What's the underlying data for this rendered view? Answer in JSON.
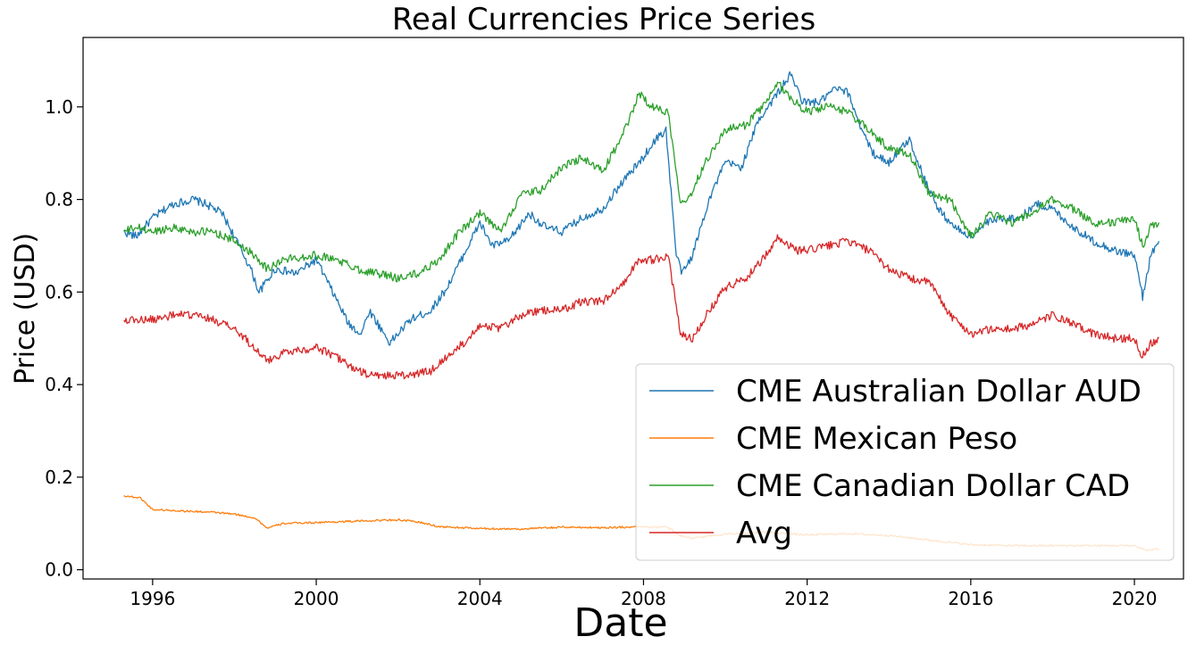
{
  "chart_data": {
    "type": "line",
    "title": "Real Currencies Price Series",
    "xlabel": "Date",
    "ylabel": "Price (USD)",
    "xlim": [
      1994.3,
      2021.2
    ],
    "ylim": [
      -0.02,
      1.15
    ],
    "x_ticks": [
      1996,
      2000,
      2004,
      2008,
      2012,
      2016,
      2020
    ],
    "y_ticks": [
      0.0,
      0.2,
      0.4,
      0.6,
      0.8,
      1.0
    ],
    "y_tick_labels": [
      "0.0",
      "0.2",
      "0.4",
      "0.6",
      "0.8",
      "1.0"
    ],
    "grid": false,
    "legend_position": "lower-right",
    "series": [
      {
        "name": "CME Australian Dollar AUD",
        "color": "#1f77b4",
        "x": [
          1995.3,
          1995.6,
          1996.0,
          1996.5,
          1997.0,
          1997.3,
          1997.7,
          1998.0,
          1998.4,
          1998.6,
          1999.0,
          1999.5,
          2000.0,
          2000.4,
          2000.8,
          2001.1,
          2001.3,
          2001.8,
          2002.3,
          2002.8,
          2003.2,
          2003.6,
          2004.0,
          2004.3,
          2004.7,
          2005.2,
          2005.6,
          2006.0,
          2006.5,
          2007.0,
          2007.5,
          2007.9,
          2008.3,
          2008.55,
          2008.8,
          2008.95,
          2009.2,
          2009.6,
          2010.0,
          2010.4,
          2010.8,
          2011.2,
          2011.6,
          2011.9,
          2012.3,
          2012.7,
          2013.0,
          2013.3,
          2013.6,
          2014.0,
          2014.5,
          2014.8,
          2015.2,
          2015.6,
          2016.0,
          2016.4,
          2016.8,
          2017.2,
          2017.6,
          2018.0,
          2018.5,
          2019.0,
          2019.5,
          2020.0,
          2020.2,
          2020.4,
          2020.6
        ],
        "y": [
          0.73,
          0.72,
          0.76,
          0.79,
          0.8,
          0.79,
          0.77,
          0.72,
          0.65,
          0.6,
          0.65,
          0.64,
          0.67,
          0.6,
          0.53,
          0.51,
          0.56,
          0.49,
          0.54,
          0.56,
          0.61,
          0.68,
          0.75,
          0.7,
          0.71,
          0.77,
          0.74,
          0.73,
          0.76,
          0.78,
          0.84,
          0.88,
          0.93,
          0.95,
          0.68,
          0.64,
          0.68,
          0.8,
          0.88,
          0.87,
          0.97,
          1.02,
          1.07,
          1.01,
          1.01,
          1.04,
          1.03,
          0.96,
          0.9,
          0.88,
          0.93,
          0.86,
          0.78,
          0.74,
          0.72,
          0.75,
          0.76,
          0.76,
          0.79,
          0.78,
          0.74,
          0.71,
          0.69,
          0.68,
          0.59,
          0.68,
          0.71
        ]
      },
      {
        "name": "CME Mexican Peso",
        "color": "#ff7f0e",
        "x": [
          1995.3,
          1995.7,
          1996.0,
          1996.5,
          1997.0,
          1997.5,
          1998.0,
          1998.5,
          1998.8,
          1999.2,
          2000.0,
          2001.0,
          2002.0,
          2002.5,
          2003.0,
          2004.0,
          2005.0,
          2006.0,
          2007.0,
          2008.0,
          2008.6,
          2008.9,
          2009.2,
          2010.0,
          2011.0,
          2012.0,
          2013.0,
          2014.0,
          2015.0,
          2016.0,
          2017.0,
          2018.0,
          2019.0,
          2020.0,
          2020.3,
          2020.6
        ],
        "y": [
          0.16,
          0.155,
          0.13,
          0.128,
          0.126,
          0.124,
          0.12,
          0.112,
          0.09,
          0.1,
          0.102,
          0.105,
          0.108,
          0.103,
          0.093,
          0.089,
          0.088,
          0.092,
          0.091,
          0.093,
          0.092,
          0.074,
          0.068,
          0.077,
          0.081,
          0.075,
          0.078,
          0.074,
          0.064,
          0.054,
          0.052,
          0.052,
          0.052,
          0.052,
          0.042,
          0.045
        ]
      },
      {
        "name": "CME Canadian Dollar CAD",
        "color": "#2ca02c",
        "x": [
          1995.3,
          1995.6,
          1996.0,
          1996.5,
          1997.0,
          1997.5,
          1998.0,
          1998.5,
          1998.8,
          1999.2,
          2000.0,
          2000.5,
          2001.0,
          2001.5,
          2002.0,
          2002.5,
          2003.0,
          2003.5,
          2004.0,
          2004.5,
          2005.0,
          2005.5,
          2006.0,
          2006.5,
          2007.0,
          2007.5,
          2007.9,
          2008.2,
          2008.6,
          2008.9,
          2009.1,
          2009.5,
          2010.0,
          2010.5,
          2011.0,
          2011.3,
          2011.7,
          2012.0,
          2012.5,
          2013.0,
          2013.5,
          2014.0,
          2014.5,
          2015.0,
          2015.5,
          2016.0,
          2016.5,
          2017.0,
          2017.5,
          2018.0,
          2018.5,
          2019.0,
          2019.5,
          2020.0,
          2020.2,
          2020.4,
          2020.6
        ],
        "y": [
          0.73,
          0.74,
          0.73,
          0.74,
          0.73,
          0.73,
          0.71,
          0.68,
          0.65,
          0.67,
          0.68,
          0.67,
          0.65,
          0.64,
          0.63,
          0.64,
          0.67,
          0.73,
          0.77,
          0.73,
          0.81,
          0.82,
          0.87,
          0.89,
          0.86,
          0.94,
          1.03,
          1.0,
          0.99,
          0.8,
          0.8,
          0.88,
          0.95,
          0.96,
          1.01,
          1.05,
          1.01,
          0.99,
          1.0,
          0.99,
          0.95,
          0.91,
          0.9,
          0.81,
          0.8,
          0.72,
          0.77,
          0.75,
          0.77,
          0.8,
          0.78,
          0.75,
          0.75,
          0.76,
          0.7,
          0.74,
          0.75
        ]
      },
      {
        "name": "Avg",
        "color": "#d62728",
        "x": [
          1995.3,
          1995.6,
          1996.0,
          1996.5,
          1997.0,
          1997.5,
          1998.0,
          1998.5,
          1998.8,
          1999.2,
          2000.0,
          2000.5,
          2001.0,
          2001.3,
          2001.8,
          2002.3,
          2002.8,
          2003.2,
          2003.6,
          2004.0,
          2004.5,
          2005.0,
          2005.5,
          2006.0,
          2006.5,
          2007.0,
          2007.5,
          2007.9,
          2008.3,
          2008.6,
          2008.9,
          2009.2,
          2009.6,
          2010.0,
          2010.5,
          2011.0,
          2011.3,
          2011.7,
          2012.0,
          2012.5,
          2013.0,
          2013.5,
          2014.0,
          2014.5,
          2015.0,
          2015.5,
          2016.0,
          2016.5,
          2017.0,
          2017.5,
          2018.0,
          2018.5,
          2019.0,
          2019.5,
          2020.0,
          2020.2,
          2020.4,
          2020.6
        ],
        "y": [
          0.54,
          0.54,
          0.54,
          0.55,
          0.55,
          0.54,
          0.52,
          0.48,
          0.45,
          0.47,
          0.48,
          0.46,
          0.43,
          0.42,
          0.42,
          0.42,
          0.43,
          0.46,
          0.49,
          0.53,
          0.52,
          0.55,
          0.56,
          0.56,
          0.58,
          0.58,
          0.62,
          0.67,
          0.67,
          0.68,
          0.51,
          0.5,
          0.56,
          0.61,
          0.63,
          0.68,
          0.72,
          0.69,
          0.69,
          0.7,
          0.71,
          0.69,
          0.65,
          0.63,
          0.62,
          0.55,
          0.51,
          0.52,
          0.52,
          0.53,
          0.55,
          0.53,
          0.51,
          0.5,
          0.5,
          0.46,
          0.49,
          0.5
        ]
      }
    ]
  }
}
